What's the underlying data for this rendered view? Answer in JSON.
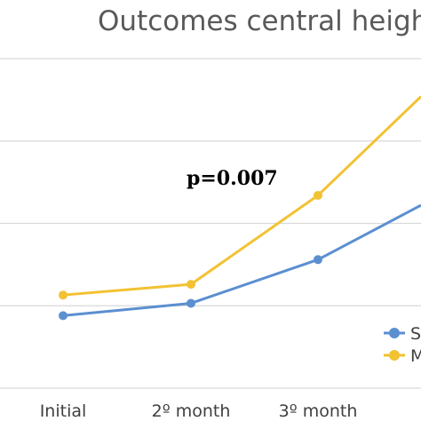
{
  "chart_data": {
    "type": "line",
    "title": "Outcomes central height",
    "categories": [
      "Initial",
      "2º month",
      "3º month",
      ""
    ],
    "series": [
      {
        "name": "S",
        "color": "#5B8FD0",
        "values": [
          0.88,
          1.03,
          1.56,
          2.22
        ]
      },
      {
        "name": "M",
        "color": "#F2C232",
        "values": [
          1.13,
          1.26,
          2.34,
          3.54
        ]
      }
    ],
    "ylim": [
      0,
      4
    ],
    "grid": true,
    "legend_position": "bottom-right",
    "annotations": [
      {
        "text": "p=0.007"
      }
    ]
  },
  "colors": {
    "gridline": "#d9d9d9",
    "axis": "#d9d9d9"
  }
}
